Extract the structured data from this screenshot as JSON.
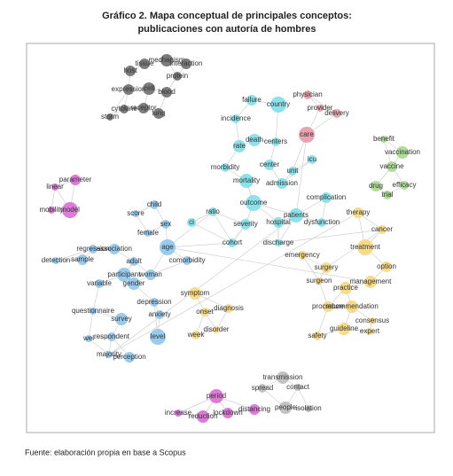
{
  "header": {
    "title_line1": "Gráfico 2. Mapa conceptual de principales conceptos:",
    "title_line2": "publicaciones con autoría de hombres"
  },
  "nodes": [
    {
      "label": "host",
      "color": "#6e6e6e"
    },
    {
      "label": "tissue",
      "color": "#6e6e6e"
    },
    {
      "label": "mechanism",
      "color": "#6e6e6e"
    },
    {
      "label": "interaction",
      "color": "#6e6e6e"
    },
    {
      "label": "protein",
      "color": "#6e6e6e"
    },
    {
      "label": "expression",
      "color": "#6e6e6e"
    },
    {
      "label": "cell",
      "color": "#6e6e6e"
    },
    {
      "label": "blood",
      "color": "#6e6e6e"
    },
    {
      "label": "cytokine",
      "color": "#6e6e6e"
    },
    {
      "label": "receptor",
      "color": "#6e6e6e"
    },
    {
      "label": "storm",
      "color": "#6e6e6e"
    },
    {
      "label": "lung",
      "color": "#6e6e6e"
    },
    {
      "label": "failure",
      "color": "#7fdfe9"
    },
    {
      "label": "country",
      "color": "#7fdfe9"
    },
    {
      "label": "incidence",
      "color": "#7fdfe9"
    },
    {
      "label": "death",
      "color": "#7fdfe9"
    },
    {
      "label": "centers",
      "color": "#7fdfe9"
    },
    {
      "label": "rate",
      "color": "#7fdfe9"
    },
    {
      "label": "icu",
      "color": "#7fdfe9"
    },
    {
      "label": "center",
      "color": "#7fdfe9"
    },
    {
      "label": "morbidity",
      "color": "#7fdfe9"
    },
    {
      "label": "unit",
      "color": "#7fdfe9"
    },
    {
      "label": "mortality",
      "color": "#7fdfe9"
    },
    {
      "label": "admission",
      "color": "#7fdfe9"
    },
    {
      "label": "outcome",
      "color": "#7fdfe9"
    },
    {
      "label": "ratio",
      "color": "#7fdfe9"
    },
    {
      "label": "ci",
      "color": "#7fdfe9"
    },
    {
      "label": "severity",
      "color": "#7fdfe9"
    },
    {
      "label": "cohort",
      "color": "#7fdfe9"
    },
    {
      "label": "hospital",
      "color": "#7fdfe9"
    },
    {
      "label": "patients",
      "color": "#7fdfe9"
    },
    {
      "label": "complication",
      "color": "#7fdfe9"
    },
    {
      "label": "dysfunction",
      "color": "#7fdfe9"
    },
    {
      "label": "discharge",
      "color": "#7fdfe9"
    },
    {
      "label": "physician",
      "color": "#e89aa6"
    },
    {
      "label": "provider",
      "color": "#e89aa6"
    },
    {
      "label": "delivery",
      "color": "#e89aa6"
    },
    {
      "label": "care",
      "color": "#e89aa6"
    },
    {
      "label": "benefit",
      "color": "#a6d98c"
    },
    {
      "label": "vaccination",
      "color": "#a6d98c"
    },
    {
      "label": "vaccine",
      "color": "#a6d98c"
    },
    {
      "label": "drug",
      "color": "#a6d98c"
    },
    {
      "label": "efficacy",
      "color": "#a6d98c"
    },
    {
      "label": "trial",
      "color": "#a6d98c"
    },
    {
      "label": "parameter",
      "color": "#d96cd6"
    },
    {
      "label": "linear",
      "color": "#d96cd6"
    },
    {
      "label": "mobility",
      "color": "#d96cd6"
    },
    {
      "label": "model",
      "color": "#d96cd6"
    },
    {
      "label": "period",
      "color": "#d96cd6"
    },
    {
      "label": "increase",
      "color": "#d96cd6"
    },
    {
      "label": "reduction",
      "color": "#d96cd6"
    },
    {
      "label": "lockdown",
      "color": "#d96cd6"
    },
    {
      "label": "distancing",
      "color": "#d96cd6"
    },
    {
      "label": "transmission",
      "color": "#bdbdbd"
    },
    {
      "label": "spread",
      "color": "#bdbdbd"
    },
    {
      "label": "contact",
      "color": "#bdbdbd"
    },
    {
      "label": "people",
      "color": "#bdbdbd"
    },
    {
      "label": "isolation",
      "color": "#bdbdbd"
    },
    {
      "label": "child",
      "color": "#8ec5ec"
    },
    {
      "label": "score",
      "color": "#8ec5ec"
    },
    {
      "label": "sex",
      "color": "#8ec5ec"
    },
    {
      "label": "female",
      "color": "#8ec5ec"
    },
    {
      "label": "age",
      "color": "#8ec5ec"
    },
    {
      "label": "regression",
      "color": "#8ec5ec"
    },
    {
      "label": "association",
      "color": "#8ec5ec"
    },
    {
      "label": "detection",
      "color": "#8ec5ec"
    },
    {
      "label": "sample",
      "color": "#8ec5ec"
    },
    {
      "label": "adult",
      "color": "#8ec5ec"
    },
    {
      "label": "comorbidity",
      "color": "#8ec5ec"
    },
    {
      "label": "participant",
      "color": "#8ec5ec"
    },
    {
      "label": "woman",
      "color": "#8ec5ec"
    },
    {
      "label": "variable",
      "color": "#8ec5ec"
    },
    {
      "label": "gender",
      "color": "#8ec5ec"
    },
    {
      "label": "depression",
      "color": "#8ec5ec"
    },
    {
      "label": "questionnaire",
      "color": "#8ec5ec"
    },
    {
      "label": "anxiety",
      "color": "#8ec5ec"
    },
    {
      "label": "survey",
      "color": "#8ec5ec"
    },
    {
      "label": "level",
      "color": "#8ec5ec"
    },
    {
      "label": "wel",
      "color": "#8ec5ec"
    },
    {
      "label": "respondent",
      "color": "#8ec5ec"
    },
    {
      "label": "majority",
      "color": "#8ec5ec"
    },
    {
      "label": "perception",
      "color": "#8ec5ec"
    },
    {
      "label": "therapy",
      "color": "#f6d77c"
    },
    {
      "label": "cancer",
      "color": "#f6d77c"
    },
    {
      "label": "treatment",
      "color": "#f6d77c"
    },
    {
      "label": "emergency",
      "color": "#f6d77c"
    },
    {
      "label": "surgery",
      "color": "#f6d77c"
    },
    {
      "label": "option",
      "color": "#f6d77c"
    },
    {
      "label": "surgeon",
      "color": "#f6d77c"
    },
    {
      "label": "management",
      "color": "#f6d77c"
    },
    {
      "label": "practice",
      "color": "#f6d77c"
    },
    {
      "label": "symptom",
      "color": "#f6d77c"
    },
    {
      "label": "diagnosis",
      "color": "#f6d77c"
    },
    {
      "label": "onset",
      "color": "#f6d77c"
    },
    {
      "label": "consensus",
      "color": "#f6d77c"
    },
    {
      "label": "procedure",
      "color": "#f6d77c"
    },
    {
      "label": "recommendation",
      "color": "#f6d77c"
    },
    {
      "label": "guideline",
      "color": "#f6d77c"
    },
    {
      "label": "expert",
      "color": "#f6d77c"
    },
    {
      "label": "safety",
      "color": "#f6d77c"
    },
    {
      "label": "disorder",
      "color": "#f6d77c"
    },
    {
      "label": "week",
      "color": "#f6d77c"
    }
  ],
  "footer": {
    "source": "Fuente: elaboración propia en base a Scopus"
  }
}
